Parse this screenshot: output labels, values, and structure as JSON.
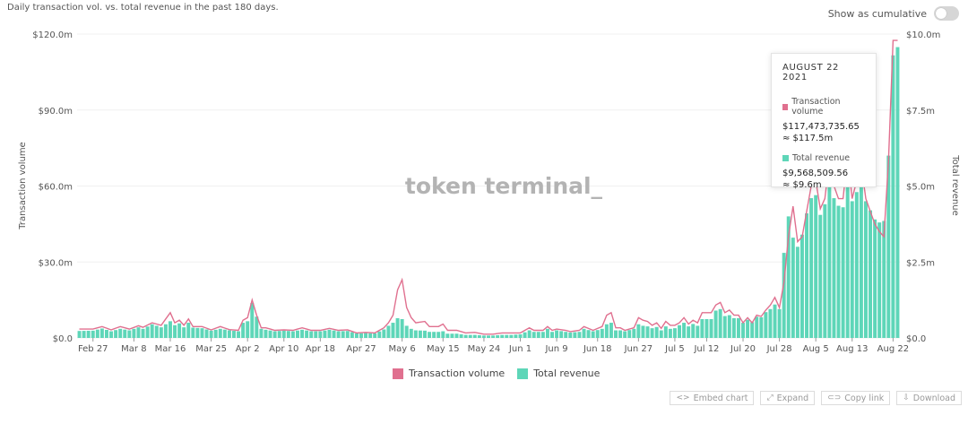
{
  "header": {
    "subtitle": "Daily transaction vol. vs. total revenue in the past 180 days.",
    "toggle_label": "Show as cumulative"
  },
  "watermark": "token terminal_",
  "tooltip": {
    "date": "AUGUST 22 2021",
    "series1_name": "Transaction volume",
    "series1_value": "$117,473,735.65",
    "series1_approx": "≈ $117.5m",
    "series2_name": "Total revenue",
    "series2_value": "$9,568,509.56",
    "series2_approx": "≈ $9.6m"
  },
  "legend": [
    {
      "label": "Transaction volume",
      "color": "#e0708f"
    },
    {
      "label": "Total revenue",
      "color": "#5ed6b8"
    }
  ],
  "actions": {
    "embed": "Embed chart",
    "expand": "Expand",
    "copy": "Copy link",
    "download": "Download"
  },
  "colors": {
    "volume_line": "#e0708f",
    "revenue_bar": "#5ed6b8",
    "grid": "#f0f0f0",
    "axis_text": "#555555"
  },
  "chart_data": {
    "type": "bar+line",
    "ylabel_left": "Transaction volume",
    "ylabel_right": "Total revenue",
    "y_left_ticks": [
      "$0.0",
      "$30.0m",
      "$60.0m",
      "$90.0m",
      "$120.0m"
    ],
    "y_right_ticks": [
      "$0.0",
      "$2.5m",
      "$5.0m",
      "$7.5m",
      "$10.0m"
    ],
    "ylim_left": [
      0,
      120
    ],
    "ylim_right": [
      0,
      10
    ],
    "x_ticks": [
      "Feb 27",
      "Mar 8",
      "Mar 16",
      "Mar 25",
      "Apr 2",
      "Apr 10",
      "Apr 18",
      "Apr 27",
      "May 6",
      "May 15",
      "May 24",
      "Jun 1",
      "Jun 9",
      "Jun 18",
      "Jun 27",
      "Jul 5",
      "Jul 12",
      "Jul 20",
      "Jul 28",
      "Aug 5",
      "Aug 13",
      "Aug 22"
    ],
    "x_tick_days": [
      4,
      13,
      21,
      30,
      38,
      46,
      54,
      63,
      72,
      81,
      90,
      98,
      106,
      115,
      124,
      132,
      139,
      147,
      155,
      163,
      171,
      180
    ],
    "grid": true,
    "series": [
      {
        "name": "Transaction volume",
        "axis": "left",
        "kind": "line",
        "anchors": [
          [
            1,
            3.5
          ],
          [
            4,
            3.5
          ],
          [
            6,
            4.5
          ],
          [
            8,
            3.2
          ],
          [
            10,
            4.5
          ],
          [
            12,
            3.5
          ],
          [
            14,
            4.8
          ],
          [
            15,
            4.2
          ],
          [
            17,
            6
          ],
          [
            19,
            5
          ],
          [
            21,
            10
          ],
          [
            22,
            6
          ],
          [
            23,
            7
          ],
          [
            24,
            5
          ],
          [
            25,
            7.5
          ],
          [
            26,
            4.5
          ],
          [
            28,
            4.5
          ],
          [
            30,
            3.2
          ],
          [
            32,
            4.5
          ],
          [
            34,
            3.3
          ],
          [
            36,
            3
          ],
          [
            37,
            7
          ],
          [
            38,
            8
          ],
          [
            39,
            15
          ],
          [
            40,
            9
          ],
          [
            41,
            4
          ],
          [
            42,
            4
          ],
          [
            44,
            3
          ],
          [
            46,
            3.2
          ],
          [
            48,
            3
          ],
          [
            50,
            4
          ],
          [
            52,
            3
          ],
          [
            54,
            3
          ],
          [
            56,
            3.8
          ],
          [
            58,
            3
          ],
          [
            60,
            3.2
          ],
          [
            62,
            2
          ],
          [
            64,
            2.2
          ],
          [
            66,
            2
          ],
          [
            68,
            4
          ],
          [
            69,
            6
          ],
          [
            70,
            9
          ],
          [
            71,
            19
          ],
          [
            72,
            23
          ],
          [
            73,
            12
          ],
          [
            74,
            8
          ],
          [
            75,
            6
          ],
          [
            77,
            6.5
          ],
          [
            78,
            4.5
          ],
          [
            80,
            4.5
          ],
          [
            81,
            5.5
          ],
          [
            82,
            3
          ],
          [
            84,
            3
          ],
          [
            86,
            2
          ],
          [
            88,
            2.2
          ],
          [
            90,
            1.5
          ],
          [
            92,
            1.5
          ],
          [
            94,
            2
          ],
          [
            96,
            2
          ],
          [
            98,
            2
          ],
          [
            100,
            4
          ],
          [
            101,
            3
          ],
          [
            103,
            3
          ],
          [
            104,
            4.5
          ],
          [
            105,
            3
          ],
          [
            106,
            3.5
          ],
          [
            108,
            3
          ],
          [
            109,
            2.5
          ],
          [
            111,
            3
          ],
          [
            112,
            4.5
          ],
          [
            114,
            3
          ],
          [
            116,
            4.5
          ],
          [
            117,
            9
          ],
          [
            118,
            10
          ],
          [
            119,
            4
          ],
          [
            120,
            4
          ],
          [
            121,
            3
          ],
          [
            123,
            4
          ],
          [
            124,
            8
          ],
          [
            125,
            7
          ],
          [
            126,
            6.5
          ],
          [
            127,
            5
          ],
          [
            128,
            6
          ],
          [
            129,
            3.8
          ],
          [
            130,
            6.5
          ],
          [
            131,
            5
          ],
          [
            132,
            5
          ],
          [
            133,
            6
          ],
          [
            134,
            8
          ],
          [
            135,
            5.5
          ],
          [
            136,
            7
          ],
          [
            137,
            6
          ],
          [
            138,
            10
          ],
          [
            139,
            10
          ],
          [
            140,
            10
          ],
          [
            141,
            13
          ],
          [
            142,
            14
          ],
          [
            143,
            10
          ],
          [
            144,
            11
          ],
          [
            145,
            9
          ],
          [
            146,
            9
          ],
          [
            147,
            6
          ],
          [
            148,
            8
          ],
          [
            149,
            6
          ],
          [
            150,
            9
          ],
          [
            151,
            8.5
          ],
          [
            152,
            11
          ],
          [
            153,
            13
          ],
          [
            154,
            16
          ],
          [
            155,
            12
          ],
          [
            156,
            22
          ],
          [
            157,
            40
          ],
          [
            158,
            52
          ],
          [
            159,
            38
          ],
          [
            160,
            40
          ],
          [
            161,
            50
          ],
          [
            162,
            60
          ],
          [
            163,
            62
          ],
          [
            164,
            51
          ],
          [
            165,
            55
          ],
          [
            166,
            70
          ],
          [
            167,
            60
          ],
          [
            168,
            55
          ],
          [
            169,
            55
          ],
          [
            170,
            72
          ],
          [
            171,
            55
          ],
          [
            172,
            62
          ],
          [
            173,
            68
          ],
          [
            174,
            55
          ],
          [
            175,
            50
          ],
          [
            176,
            45
          ],
          [
            177,
            42
          ],
          [
            178,
            40
          ],
          [
            179,
            70
          ],
          [
            180,
            117.5
          ],
          [
            181,
            117.5
          ]
        ]
      },
      {
        "name": "Total revenue",
        "axis": "right",
        "kind": "bar",
        "anchors": [
          [
            1,
            0.23
          ],
          [
            4,
            0.24
          ],
          [
            6,
            0.31
          ],
          [
            8,
            0.22
          ],
          [
            10,
            0.3
          ],
          [
            12,
            0.25
          ],
          [
            14,
            0.35
          ],
          [
            15,
            0.3
          ],
          [
            17,
            0.45
          ],
          [
            19,
            0.35
          ],
          [
            21,
            0.55
          ],
          [
            22,
            0.42
          ],
          [
            23,
            0.48
          ],
          [
            24,
            0.35
          ],
          [
            25,
            0.5
          ],
          [
            26,
            0.34
          ],
          [
            28,
            0.32
          ],
          [
            30,
            0.24
          ],
          [
            32,
            0.3
          ],
          [
            34,
            0.25
          ],
          [
            36,
            0.22
          ],
          [
            37,
            0.5
          ],
          [
            38,
            0.55
          ],
          [
            39,
            1.15
          ],
          [
            40,
            0.7
          ],
          [
            41,
            0.3
          ],
          [
            42,
            0.27
          ],
          [
            44,
            0.22
          ],
          [
            46,
            0.24
          ],
          [
            48,
            0.22
          ],
          [
            50,
            0.27
          ],
          [
            52,
            0.22
          ],
          [
            54,
            0.22
          ],
          [
            56,
            0.27
          ],
          [
            58,
            0.22
          ],
          [
            60,
            0.23
          ],
          [
            62,
            0.15
          ],
          [
            64,
            0.16
          ],
          [
            66,
            0.15
          ],
          [
            68,
            0.28
          ],
          [
            69,
            0.4
          ],
          [
            70,
            0.5
          ],
          [
            71,
            0.65
          ],
          [
            72,
            0.62
          ],
          [
            73,
            0.4
          ],
          [
            74,
            0.3
          ],
          [
            75,
            0.25
          ],
          [
            77,
            0.24
          ],
          [
            78,
            0.2
          ],
          [
            80,
            0.2
          ],
          [
            81,
            0.22
          ],
          [
            82,
            0.14
          ],
          [
            84,
            0.14
          ],
          [
            86,
            0.1
          ],
          [
            88,
            0.1
          ],
          [
            90,
            0.08
          ],
          [
            92,
            0.08
          ],
          [
            94,
            0.1
          ],
          [
            96,
            0.1
          ],
          [
            98,
            0.12
          ],
          [
            100,
            0.25
          ],
          [
            101,
            0.2
          ],
          [
            103,
            0.2
          ],
          [
            104,
            0.3
          ],
          [
            105,
            0.2
          ],
          [
            106,
            0.25
          ],
          [
            108,
            0.2
          ],
          [
            109,
            0.18
          ],
          [
            111,
            0.2
          ],
          [
            112,
            0.3
          ],
          [
            114,
            0.22
          ],
          [
            116,
            0.3
          ],
          [
            117,
            0.45
          ],
          [
            118,
            0.5
          ],
          [
            119,
            0.25
          ],
          [
            120,
            0.25
          ],
          [
            121,
            0.22
          ],
          [
            123,
            0.3
          ],
          [
            124,
            0.45
          ],
          [
            125,
            0.4
          ],
          [
            126,
            0.38
          ],
          [
            127,
            0.32
          ],
          [
            128,
            0.36
          ],
          [
            129,
            0.25
          ],
          [
            130,
            0.38
          ],
          [
            131,
            0.3
          ],
          [
            132,
            0.32
          ],
          [
            133,
            0.42
          ],
          [
            134,
            0.5
          ],
          [
            135,
            0.38
          ],
          [
            136,
            0.46
          ],
          [
            137,
            0.4
          ],
          [
            138,
            0.62
          ],
          [
            139,
            0.62
          ],
          [
            140,
            0.62
          ],
          [
            141,
            0.9
          ],
          [
            142,
            0.95
          ],
          [
            143,
            0.72
          ],
          [
            144,
            0.75
          ],
          [
            145,
            0.65
          ],
          [
            146,
            0.65
          ],
          [
            147,
            0.5
          ],
          [
            148,
            0.6
          ],
          [
            149,
            0.52
          ],
          [
            150,
            0.7
          ],
          [
            151,
            0.68
          ],
          [
            152,
            0.85
          ],
          [
            153,
            0.95
          ],
          [
            154,
            1.1
          ],
          [
            155,
            0.95
          ],
          [
            156,
            2.8
          ],
          [
            157,
            4
          ],
          [
            158,
            3.3
          ],
          [
            159,
            3
          ],
          [
            160,
            3.4
          ],
          [
            161,
            4.1
          ],
          [
            162,
            4.6
          ],
          [
            163,
            4.7
          ],
          [
            164,
            4.05
          ],
          [
            165,
            4.4
          ],
          [
            166,
            5.2
          ],
          [
            167,
            4.6
          ],
          [
            168,
            4.35
          ],
          [
            169,
            4.3
          ],
          [
            170,
            5.1
          ],
          [
            171,
            4.5
          ],
          [
            172,
            4.8
          ],
          [
            173,
            5.4
          ],
          [
            174,
            4.5
          ],
          [
            175,
            4.2
          ],
          [
            176,
            3.9
          ],
          [
            177,
            3.8
          ],
          [
            178,
            3.85
          ],
          [
            179,
            6
          ],
          [
            180,
            9.3
          ],
          [
            181,
            9.57
          ]
        ]
      }
    ]
  }
}
